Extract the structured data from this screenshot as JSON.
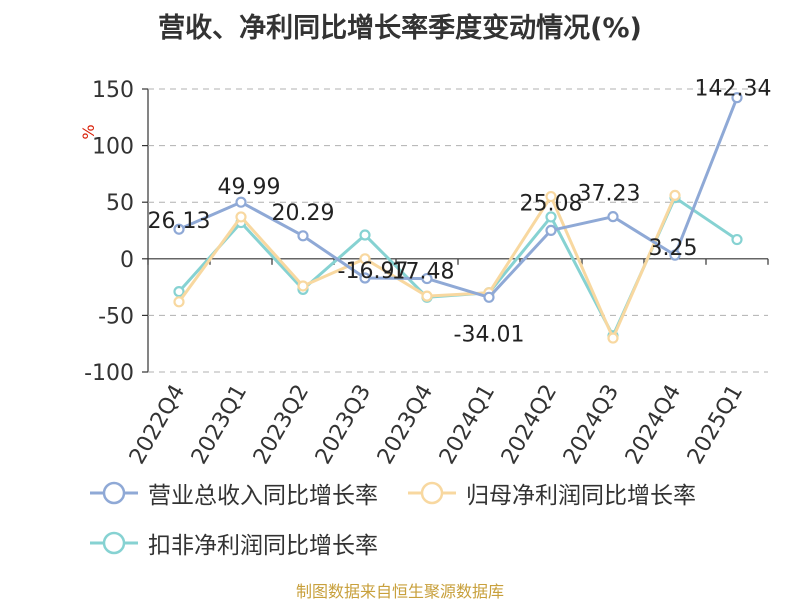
{
  "chart_data": {
    "type": "line",
    "title": "营收、净利同比增长率季度变动情况(%)",
    "ylabel": "%",
    "ylim": [
      -100,
      150
    ],
    "yticks": [
      150,
      100,
      50,
      0,
      -50,
      -100
    ],
    "grid": true,
    "legend_position": "bottom",
    "categories": [
      "2022Q4",
      "2023Q1",
      "2023Q2",
      "2023Q3",
      "2023Q4",
      "2024Q1",
      "2024Q2",
      "2024Q3",
      "2024Q4",
      "2025Q1"
    ],
    "series": [
      {
        "name": "营业总收入同比增长率",
        "color": "#8fa9d6",
        "values": [
          26.13,
          49.99,
          20.29,
          -16.97,
          -17.48,
          -34.01,
          25.08,
          37.23,
          3.25,
          142.34
        ],
        "labels": [
          "26.13",
          "49.99",
          "20.29",
          "-16.97",
          "-17.48",
          "-34.01",
          "25.08",
          "37.23",
          "3.25",
          "142.34"
        ]
      },
      {
        "name": "归母净利润同比增长率",
        "color": "#f8d8a0",
        "values": [
          -38,
          37,
          -24,
          0,
          -33,
          -30,
          55,
          -70,
          56,
          null
        ]
      },
      {
        "name": "扣非净利润同比增长率",
        "color": "#86d2d2",
        "values": [
          -29,
          32,
          -27,
          21,
          -34,
          -30,
          37,
          -68,
          54,
          17
        ]
      }
    ]
  },
  "source_note": "制图数据来自恒生聚源数据库"
}
